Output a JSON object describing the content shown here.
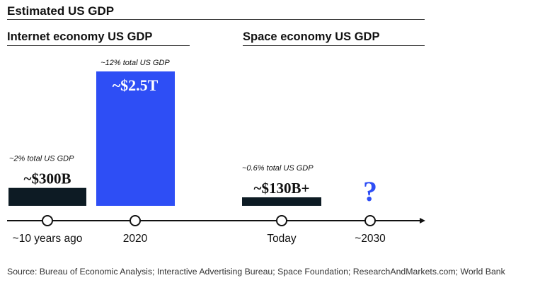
{
  "title": "Estimated US GDP",
  "panels": {
    "left": "Internet economy US GDP",
    "right": "Space economy US GDP"
  },
  "source": "Source: Bureau of Economic Analysis; Interactive Advertising Bureau; Space Foundation; ResearchAndMarkets.com; World Bank",
  "colors": {
    "internet_2020": "#2e4ef5",
    "dark_bar": "#0d1b24",
    "question_mark": "#2e4ef5",
    "axis": "#111111"
  },
  "chart_data": {
    "type": "bar",
    "categories": [
      "~10 years ago",
      "2020",
      "Today",
      "~2030"
    ],
    "series": [
      {
        "name": "Internet economy US GDP",
        "values": [
          0.3,
          2.5,
          null,
          null
        ]
      },
      {
        "name": "Space economy US GDP",
        "values": [
          null,
          null,
          0.13,
          null
        ]
      }
    ],
    "unit": "USD trillions",
    "value_labels": [
      "~$300B",
      "~$2.5T",
      "~$130B+",
      "?"
    ],
    "share_labels": [
      "~2% total US GDP",
      "~12% total US GDP",
      "~0.6% total US GDP",
      ""
    ],
    "ylim": [
      0,
      2.5
    ],
    "legend": "none",
    "grid": false
  }
}
